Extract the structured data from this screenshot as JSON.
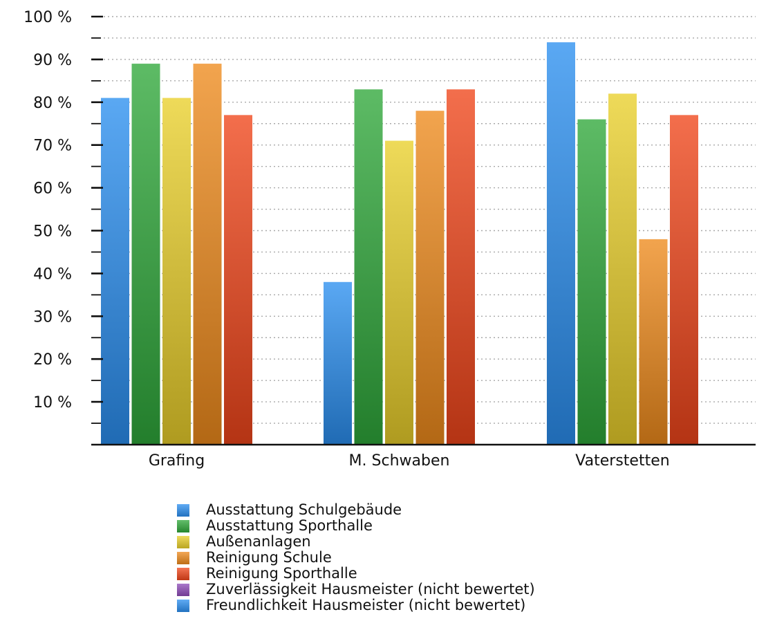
{
  "chart_data": {
    "type": "bar",
    "categories": [
      "Grafing",
      "M. Schwaben",
      "Vaterstetten"
    ],
    "ylim": [
      0,
      100
    ],
    "y_ticks": [
      "10 %",
      "20 %",
      "30 %",
      "40 %",
      "50 %",
      "60 %",
      "70 %",
      "80 %",
      "90 %",
      "100 %"
    ],
    "grid": true,
    "legend_position": "bottom",
    "series": [
      {
        "name": "Ausstattung Schulgebäude",
        "values": [
          81,
          38,
          94
        ],
        "color": "#2b8ff0"
      },
      {
        "name": "Ausstattung Sporthalle",
        "values": [
          89,
          83,
          76
        ],
        "color": "#2fa83a"
      },
      {
        "name": "Außenanlagen",
        "values": [
          81,
          71,
          82
        ],
        "color": "#e9cf2a"
      },
      {
        "name": "Reinigung Schule",
        "values": [
          89,
          78,
          48
        ],
        "color": "#ee8a1c"
      },
      {
        "name": "Reinigung Sporthalle",
        "values": [
          77,
          83,
          77
        ],
        "color": "#f0451a"
      },
      {
        "name": "Zuverlässigkeit Hausmeister (nicht bewertet)",
        "values": [
          null,
          null,
          null
        ],
        "color": "#8e4bb8"
      },
      {
        "name": "Freundlichkeit Hausmeister (nicht bewertet)",
        "values": [
          null,
          null,
          null
        ],
        "color": "#2b8ff0"
      }
    ]
  }
}
